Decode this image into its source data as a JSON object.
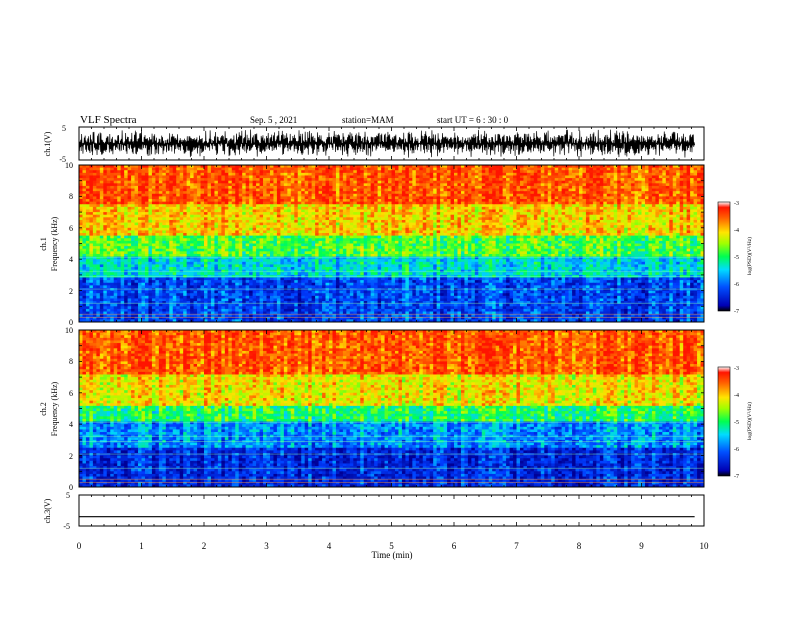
{
  "header": {
    "title": "VLF Spectra",
    "date": "Sep. 5 , 2021",
    "station": "station=MAM",
    "start": "start UT =  6 : 30 : 0"
  },
  "chart_data": [
    {
      "type": "line",
      "panel": "ch1-waveform",
      "ylabel": "ch.1(V)",
      "ylim": [
        -5,
        5
      ],
      "yticks": [
        "5",
        "-5"
      ],
      "description_values": "dense waveform, amplitude approx -4 to 4 V",
      "xlim": [
        0,
        10
      ]
    },
    {
      "type": "heatmap",
      "panel": "ch1-spectrogram",
      "ylabel_channel": "ch.1",
      "ylabel": "Frequency (kHz)",
      "ylim": [
        0,
        10
      ],
      "yticks": [
        "0",
        "2",
        "4",
        "6",
        "8",
        "10"
      ],
      "xlim": [
        0,
        10
      ],
      "colorbar": {
        "label": "log(PSD)(V²/Hz)",
        "range": [
          -7,
          -3
        ],
        "ticks": [
          "-3",
          "-4",
          "-5",
          "-6",
          "-7"
        ]
      },
      "bands_khz": [
        {
          "from": 0,
          "to": 2.8,
          "log_psd": -6.3
        },
        {
          "from": 2.8,
          "to": 4.2,
          "log_psd": -5.5
        },
        {
          "from": 4.2,
          "to": 5.5,
          "log_psd": -4.8
        },
        {
          "from": 5.5,
          "to": 7.5,
          "log_psd": -4.0
        },
        {
          "from": 7.5,
          "to": 10,
          "log_psd": -3.4
        }
      ]
    },
    {
      "type": "heatmap",
      "panel": "ch2-spectrogram",
      "ylabel_channel": "ch.2",
      "ylabel": "Frequency (kHz)",
      "ylim": [
        0,
        10
      ],
      "yticks": [
        "0",
        "2",
        "4",
        "6",
        "8",
        "10"
      ],
      "xlim": [
        0,
        10
      ],
      "colorbar": {
        "label": "log(PSD)(V²/Hz)",
        "range": [
          -7,
          -3
        ],
        "ticks": [
          "-3",
          "-4",
          "-5",
          "-6",
          "-7"
        ]
      },
      "bands_khz": [
        {
          "from": 0,
          "to": 2.5,
          "log_psd": -6.5
        },
        {
          "from": 2.5,
          "to": 4.2,
          "log_psd": -5.9
        },
        {
          "from": 4.2,
          "to": 5.2,
          "log_psd": -5.0
        },
        {
          "from": 5.2,
          "to": 7.2,
          "log_psd": -4.1
        },
        {
          "from": 7.2,
          "to": 10,
          "log_psd": -3.4
        }
      ]
    },
    {
      "type": "line",
      "panel": "ch3-waveform",
      "ylabel": "ch.3(V)",
      "ylim": [
        -5,
        5
      ],
      "yticks": [
        "5",
        "0",
        "-5"
      ],
      "x": [
        0,
        9.85
      ],
      "y": [
        -2.0,
        -2.0
      ],
      "xlabel": "Time (min)",
      "xlim": [
        0,
        10
      ],
      "xticks": [
        "0",
        "1",
        "2",
        "3",
        "4",
        "5",
        "6",
        "7",
        "8",
        "9",
        "10"
      ]
    }
  ],
  "colors": {
    "low": "#0000c8",
    "mid_low": "#00c8ff",
    "mid": "#00ff40",
    "mid_high": "#ffe000",
    "high": "#ff1a00",
    "axis": "#000000"
  }
}
